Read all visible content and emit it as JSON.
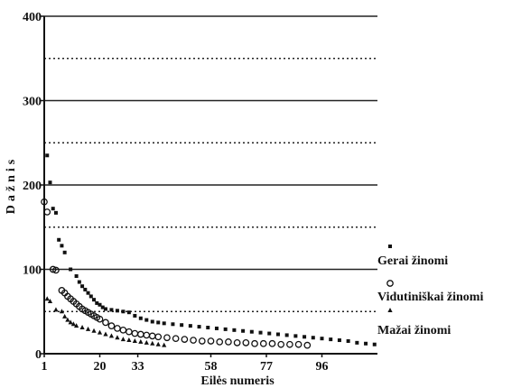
{
  "chart_data": {
    "type": "scatter",
    "xlabel": "Eilės numeris",
    "ylabel": "Dažnis",
    "ylim": [
      0,
      400
    ],
    "xlim": [
      1,
      115
    ],
    "x_ticks": [
      1,
      20,
      33,
      58,
      77,
      96
    ],
    "y_ticks": [
      0,
      100,
      200,
      300,
      400
    ],
    "grid": "horizontal solid at 100s, dotted at 50s",
    "legend_placement": "right",
    "colors": {
      "ink": "#111111",
      "grid": "#222222"
    },
    "series": [
      {
        "name": "Gerai žinomi",
        "marker": "square",
        "points": [
          [
            2,
            235
          ],
          [
            3,
            203
          ],
          [
            4,
            172
          ],
          [
            5,
            167
          ],
          [
            6,
            135
          ],
          [
            7,
            128
          ],
          [
            8,
            120
          ],
          [
            10,
            100
          ],
          [
            12,
            92
          ],
          [
            13,
            85
          ],
          [
            14,
            80
          ],
          [
            15,
            76
          ],
          [
            16,
            72
          ],
          [
            17,
            68
          ],
          [
            18,
            64
          ],
          [
            19,
            60
          ],
          [
            20,
            58
          ],
          [
            21,
            55
          ],
          [
            22,
            53
          ],
          [
            24,
            52
          ],
          [
            26,
            51
          ],
          [
            28,
            50
          ],
          [
            30,
            49
          ],
          [
            32,
            45
          ],
          [
            34,
            42
          ],
          [
            36,
            40
          ],
          [
            38,
            38
          ],
          [
            40,
            37
          ],
          [
            42,
            36
          ],
          [
            45,
            35
          ],
          [
            48,
            34
          ],
          [
            51,
            33
          ],
          [
            54,
            32
          ],
          [
            57,
            31
          ],
          [
            60,
            30
          ],
          [
            63,
            29
          ],
          [
            66,
            28
          ],
          [
            69,
            27
          ],
          [
            72,
            26
          ],
          [
            75,
            25
          ],
          [
            78,
            24
          ],
          [
            81,
            23
          ],
          [
            84,
            22
          ],
          [
            87,
            21
          ],
          [
            90,
            20
          ],
          [
            93,
            19
          ],
          [
            96,
            18
          ],
          [
            99,
            17
          ],
          [
            102,
            16
          ],
          [
            105,
            15
          ],
          [
            108,
            13
          ],
          [
            111,
            12
          ],
          [
            114,
            11
          ]
        ]
      },
      {
        "name": "Vidutiniškai žinomi",
        "marker": "circle",
        "points": [
          [
            1,
            180
          ],
          [
            2,
            168
          ],
          [
            4,
            100
          ],
          [
            5,
            99
          ],
          [
            7,
            75
          ],
          [
            8,
            72
          ],
          [
            9,
            68
          ],
          [
            10,
            65
          ],
          [
            11,
            62
          ],
          [
            12,
            59
          ],
          [
            13,
            56
          ],
          [
            14,
            53
          ],
          [
            15,
            51
          ],
          [
            16,
            49
          ],
          [
            17,
            47
          ],
          [
            18,
            45
          ],
          [
            19,
            43
          ],
          [
            20,
            41
          ],
          [
            22,
            37
          ],
          [
            24,
            33
          ],
          [
            26,
            30
          ],
          [
            28,
            28
          ],
          [
            30,
            26
          ],
          [
            32,
            24
          ],
          [
            34,
            23
          ],
          [
            36,
            22
          ],
          [
            38,
            21
          ],
          [
            40,
            20
          ],
          [
            43,
            19
          ],
          [
            46,
            18
          ],
          [
            49,
            17
          ],
          [
            52,
            16
          ],
          [
            55,
            15
          ],
          [
            58,
            15
          ],
          [
            61,
            14
          ],
          [
            64,
            14
          ],
          [
            67,
            13
          ],
          [
            70,
            13
          ],
          [
            73,
            12
          ],
          [
            76,
            12
          ],
          [
            79,
            12
          ],
          [
            82,
            11
          ],
          [
            85,
            11
          ],
          [
            88,
            11
          ],
          [
            91,
            10
          ]
        ]
      },
      {
        "name": "Mažai žinomi",
        "marker": "triangle",
        "points": [
          [
            2,
            65
          ],
          [
            3,
            62
          ],
          [
            5,
            52
          ],
          [
            7,
            50
          ],
          [
            8,
            44
          ],
          [
            9,
            40
          ],
          [
            10,
            37
          ],
          [
            11,
            35
          ],
          [
            12,
            33
          ],
          [
            14,
            31
          ],
          [
            16,
            29
          ],
          [
            18,
            27
          ],
          [
            20,
            25
          ],
          [
            22,
            23
          ],
          [
            24,
            21
          ],
          [
            26,
            19
          ],
          [
            28,
            17
          ],
          [
            30,
            16
          ],
          [
            32,
            15
          ],
          [
            34,
            14
          ],
          [
            36,
            13
          ],
          [
            38,
            12
          ],
          [
            40,
            11
          ],
          [
            42,
            10
          ]
        ]
      }
    ]
  }
}
